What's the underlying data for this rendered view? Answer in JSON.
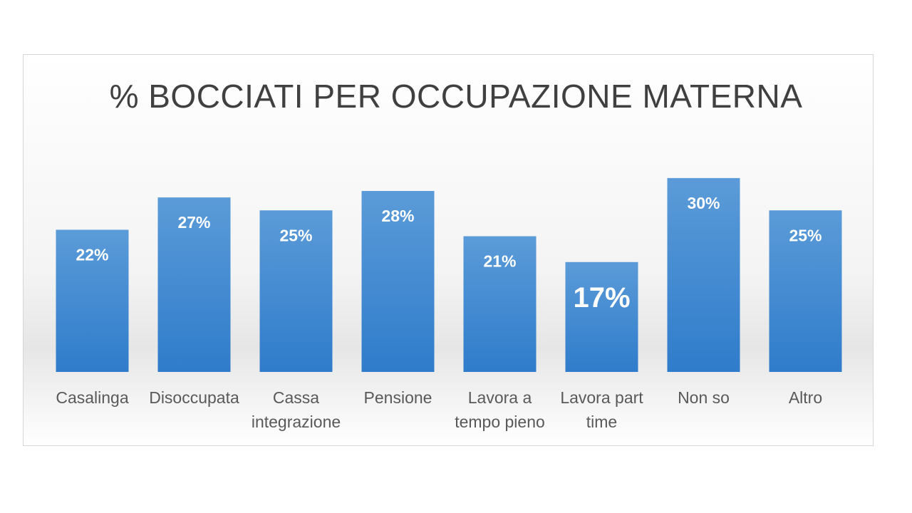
{
  "chart_data": {
    "type": "bar",
    "title": "% BOCCIATI PER OCCUPAZIONE MATERNA",
    "categories": [
      [
        "Casalinga"
      ],
      [
        "Disoccupata"
      ],
      [
        "Cassa",
        "integrazione"
      ],
      [
        "Pensione"
      ],
      [
        "Lavora a",
        "tempo pieno"
      ],
      [
        "Lavora part",
        "time"
      ],
      [
        "Non so"
      ],
      [
        "Altro"
      ]
    ],
    "values": [
      22,
      27,
      25,
      28,
      21,
      17,
      30,
      25
    ],
    "data_labels": [
      "22%",
      "27%",
      "25%",
      "28%",
      "21%",
      "17%",
      "30%",
      "25%"
    ],
    "ylim": [
      0,
      30
    ],
    "grid": false,
    "legend": "none",
    "colors": {
      "bar_top": "#5b9bd8",
      "bar_bottom": "#2f7ccb",
      "label": "#ffffff"
    }
  }
}
